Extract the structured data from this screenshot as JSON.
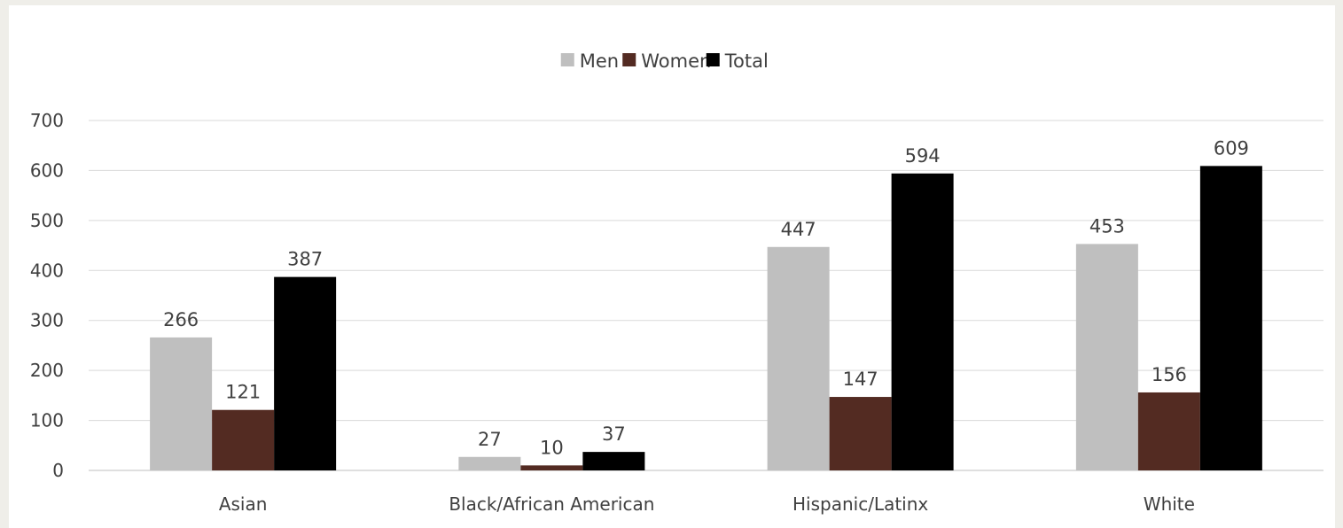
{
  "chart_data": {
    "type": "bar",
    "title": "",
    "xlabel": "",
    "ylabel": "",
    "ylim": [
      0,
      700
    ],
    "yticks": [
      0,
      100,
      200,
      300,
      400,
      500,
      600,
      700
    ],
    "grid": true,
    "legend_position": "top-center",
    "categories": [
      "Asian",
      "Black/African American",
      "Hispanic/Latinx",
      "White"
    ],
    "series": [
      {
        "name": "Men",
        "color": "#bfbfbf",
        "values": [
          266,
          27,
          447,
          453
        ],
        "labels": [
          "266",
          "27",
          "447",
          "453"
        ]
      },
      {
        "name": "Women",
        "color": "#532b22",
        "values": [
          121,
          10,
          147,
          156
        ],
        "labels": [
          "121",
          "10",
          "147",
          "156"
        ]
      },
      {
        "name": "Total",
        "color": "#000000",
        "values": [
          387,
          37,
          594,
          609
        ],
        "labels": [
          "387",
          "37",
          "594",
          "609"
        ]
      }
    ]
  }
}
